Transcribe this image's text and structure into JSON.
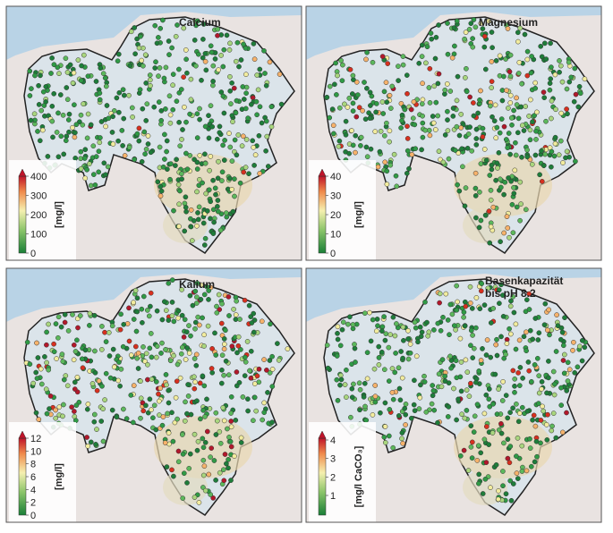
{
  "panels": [
    {
      "title": [
        "Calcium"
      ],
      "unit": "[mg/l]",
      "cbar": {
        "ticks": [
          0,
          100,
          200,
          300,
          400
        ]
      },
      "dots": "low"
    },
    {
      "title": [
        "Magnesium"
      ],
      "unit": "[mg/l]",
      "cbar": {
        "ticks": [
          0,
          10,
          20,
          30,
          40
        ]
      },
      "dots": "mid"
    },
    {
      "title": [
        "Kalium"
      ],
      "unit": "[mg/l]",
      "cbar": {
        "ticks": [
          0,
          2,
          4,
          6,
          8,
          10,
          12
        ]
      },
      "dots": "high"
    },
    {
      "title": [
        "Basenkapazität",
        "bis pH 8.2"
      ],
      "unit": "[mg/l CaCO₃]",
      "cbar": {
        "ticks": [
          1,
          2,
          3,
          4
        ]
      },
      "dots": "mid"
    }
  ]
}
